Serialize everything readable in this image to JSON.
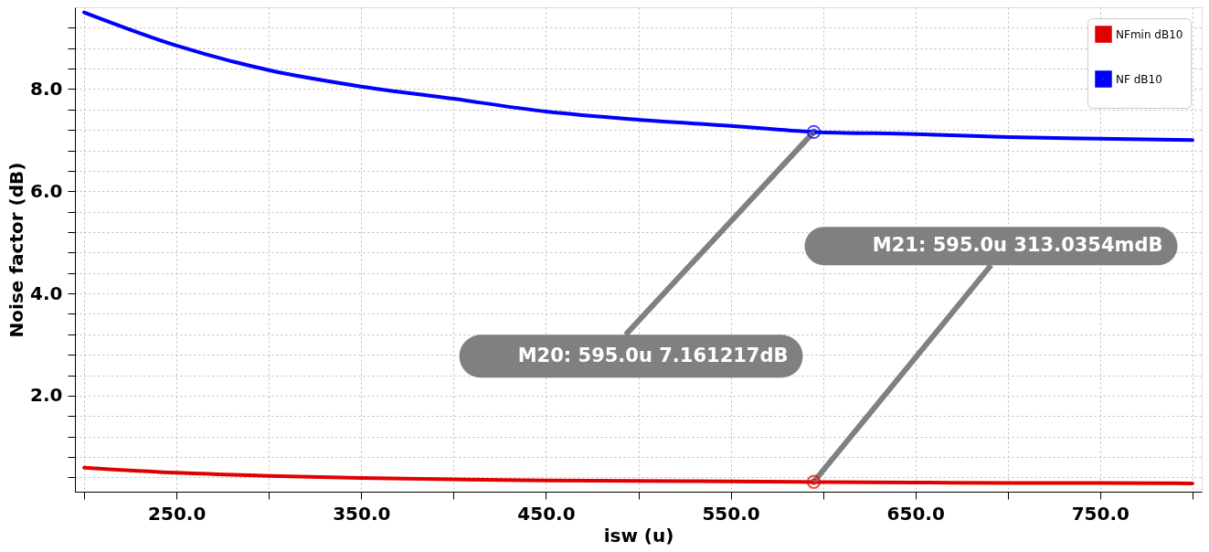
{
  "chart_data": {
    "type": "line",
    "xlabel": "isw (u)",
    "ylabel": "Noise factor (dB)",
    "x": [
      200,
      250,
      300,
      350,
      400,
      450,
      500,
      550,
      595,
      650,
      700,
      750,
      800
    ],
    "series": [
      {
        "name": "NFmin dB10",
        "color": "#e00000",
        "values": [
          0.59,
          0.49,
          0.43,
          0.39,
          0.36,
          0.34,
          0.33,
          0.32,
          0.31,
          0.3,
          0.29,
          0.29,
          0.28
        ]
      },
      {
        "name": "NF dB10",
        "color": "#0000ff",
        "values": [
          9.5,
          8.85,
          8.37,
          8.05,
          7.81,
          7.56,
          7.4,
          7.28,
          7.16,
          7.12,
          7.06,
          7.03,
          7.0
        ]
      }
    ],
    "xlim": [
      195,
      805
    ],
    "ylim": [
      0.12,
      9.6
    ],
    "xticks": [
      {
        "value": 200,
        "label": null
      },
      {
        "value": 250,
        "label": "250.0"
      },
      {
        "value": 300,
        "label": null
      },
      {
        "value": 350,
        "label": "350.0"
      },
      {
        "value": 400,
        "label": null
      },
      {
        "value": 450,
        "label": "450.0"
      },
      {
        "value": 500,
        "label": null
      },
      {
        "value": 550,
        "label": "550.0"
      },
      {
        "value": 600,
        "label": null
      },
      {
        "value": 650,
        "label": "650.0"
      },
      {
        "value": 700,
        "label": null
      },
      {
        "value": 750,
        "label": "750.0"
      },
      {
        "value": 800,
        "label": null
      }
    ],
    "yticks": [
      {
        "value": 0.4,
        "label": null
      },
      {
        "value": 0.8,
        "label": null
      },
      {
        "value": 1.2,
        "label": null
      },
      {
        "value": 1.6,
        "label": null
      },
      {
        "value": 2.0,
        "label": "2.0"
      },
      {
        "value": 2.4,
        "label": null
      },
      {
        "value": 2.8,
        "label": null
      },
      {
        "value": 3.2,
        "label": null
      },
      {
        "value": 3.6,
        "label": null
      },
      {
        "value": 4.0,
        "label": "4.0"
      },
      {
        "value": 4.4,
        "label": null
      },
      {
        "value": 4.8,
        "label": null
      },
      {
        "value": 5.2,
        "label": null
      },
      {
        "value": 5.6,
        "label": null
      },
      {
        "value": 6.0,
        "label": "6.0"
      },
      {
        "value": 6.4,
        "label": null
      },
      {
        "value": 6.8,
        "label": null
      },
      {
        "value": 7.2,
        "label": null
      },
      {
        "value": 7.6,
        "label": null
      },
      {
        "value": 8.0,
        "label": "8.0"
      },
      {
        "value": 8.4,
        "label": null
      },
      {
        "value": 8.8,
        "label": null
      },
      {
        "value": 9.2,
        "label": null
      }
    ],
    "annotations": [
      {
        "text": "M20: 595.0u 7.161217dB",
        "x": 595,
        "y": 7.161217
      },
      {
        "text": "M21: 595.0u 313.0354mdB",
        "x": 595,
        "y": 0.3130354
      }
    ],
    "grid": true,
    "legend": "top right",
    "line_style": "solid",
    "marker": "none"
  }
}
